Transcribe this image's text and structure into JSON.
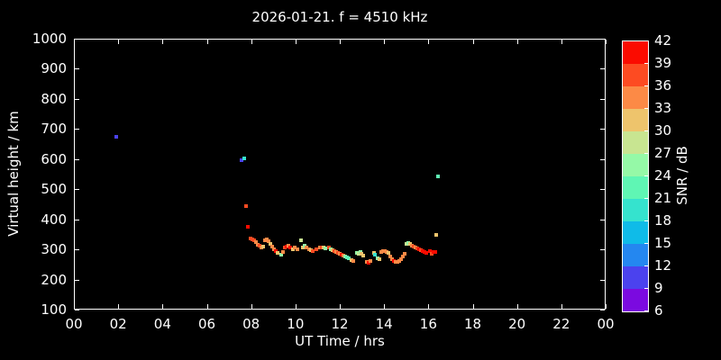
{
  "colors": {
    "background": "#000000",
    "foreground": "#ffffff",
    "axis": "#ffffff"
  },
  "chart_data": {
    "type": "scatter",
    "title": "2026-01-21. f = 4510 kHz",
    "xlabel": "UT Time / hrs",
    "ylabel": "Virtual height / km",
    "xlim": [
      0,
      24
    ],
    "ylim": [
      100,
      1000
    ],
    "grid": false,
    "marker": "square",
    "marker_size_px": 4,
    "x_tick_hours": [
      0,
      2,
      4,
      6,
      8,
      10,
      12,
      14,
      16,
      18,
      20,
      22,
      24
    ],
    "x_tick_labels": [
      "00",
      "02",
      "04",
      "06",
      "08",
      "10",
      "12",
      "14",
      "16",
      "18",
      "20",
      "22",
      "00"
    ],
    "y_tick_values": [
      100,
      200,
      300,
      400,
      500,
      600,
      700,
      800,
      900,
      1000
    ],
    "colorbar": {
      "label": "SNR / dB",
      "min": 6,
      "max": 42,
      "step": 3,
      "tick_values": [
        6,
        9,
        12,
        15,
        18,
        21,
        24,
        27,
        30,
        33,
        36,
        39,
        42
      ],
      "colors_low_to_high": [
        "#7B0AE0",
        "#4B42EE",
        "#2487F0",
        "#0FBBE8",
        "#35E3CE",
        "#5FF6B4",
        "#95F9A7",
        "#C8E591",
        "#EEC46C",
        "#FC8A46",
        "#FD4B22",
        "#FB0B00"
      ]
    },
    "points_format": [
      "ut_hours",
      "virtual_height_km",
      "snr_db"
    ],
    "points": [
      [
        1.9,
        675,
        10
      ],
      [
        7.57,
        595,
        10
      ],
      [
        7.69,
        601,
        19
      ],
      [
        7.77,
        445,
        37
      ],
      [
        7.85,
        374,
        40
      ],
      [
        7.97,
        337,
        37
      ],
      [
        8.06,
        334,
        37
      ],
      [
        8.14,
        331,
        37
      ],
      [
        8.22,
        325,
        34
      ],
      [
        8.3,
        316,
        34
      ],
      [
        8.38,
        313,
        37
      ],
      [
        8.46,
        307,
        34
      ],
      [
        8.54,
        310,
        31
      ],
      [
        8.63,
        331,
        34
      ],
      [
        8.71,
        334,
        34
      ],
      [
        8.79,
        328,
        34
      ],
      [
        8.87,
        319,
        31
      ],
      [
        8.95,
        310,
        34
      ],
      [
        9.03,
        301,
        34
      ],
      [
        9.11,
        295,
        40
      ],
      [
        9.2,
        289,
        31
      ],
      [
        9.36,
        283,
        25
      ],
      [
        9.44,
        292,
        34
      ],
      [
        9.52,
        307,
        37
      ],
      [
        9.6,
        310,
        40
      ],
      [
        9.68,
        313,
        34
      ],
      [
        9.76,
        307,
        40
      ],
      [
        9.88,
        301,
        31
      ],
      [
        9.97,
        307,
        34
      ],
      [
        10.09,
        301,
        34
      ],
      [
        10.25,
        331,
        28
      ],
      [
        10.33,
        307,
        31
      ],
      [
        10.41,
        313,
        25
      ],
      [
        10.49,
        307,
        34
      ],
      [
        10.62,
        301,
        34
      ],
      [
        10.7,
        298,
        31
      ],
      [
        10.78,
        295,
        37
      ],
      [
        10.94,
        301,
        37
      ],
      [
        11.1,
        307,
        34
      ],
      [
        11.19,
        307,
        37
      ],
      [
        11.27,
        307,
        31
      ],
      [
        11.35,
        304,
        25
      ],
      [
        11.51,
        307,
        37
      ],
      [
        11.59,
        301,
        25
      ],
      [
        11.67,
        298,
        31
      ],
      [
        11.76,
        295,
        37
      ],
      [
        11.84,
        292,
        34
      ],
      [
        11.92,
        289,
        37
      ],
      [
        12.0,
        286,
        34
      ],
      [
        12.08,
        283,
        40
      ],
      [
        12.16,
        280,
        34
      ],
      [
        12.24,
        277,
        25
      ],
      [
        12.33,
        274,
        22
      ],
      [
        12.41,
        271,
        22
      ],
      [
        12.53,
        265,
        31
      ],
      [
        12.61,
        262,
        34
      ],
      [
        12.77,
        289,
        25
      ],
      [
        12.86,
        286,
        28
      ],
      [
        12.94,
        292,
        25
      ],
      [
        12.98,
        286,
        31
      ],
      [
        13.06,
        280,
        31
      ],
      [
        13.22,
        259,
        34
      ],
      [
        13.3,
        256,
        40
      ],
      [
        13.38,
        262,
        34
      ],
      [
        13.55,
        289,
        31
      ],
      [
        13.59,
        283,
        19
      ],
      [
        13.71,
        271,
        25
      ],
      [
        13.79,
        268,
        31
      ],
      [
        13.87,
        292,
        34
      ],
      [
        13.95,
        295,
        34
      ],
      [
        14.03,
        295,
        34
      ],
      [
        14.11,
        292,
        34
      ],
      [
        14.2,
        289,
        31
      ],
      [
        14.28,
        277,
        34
      ],
      [
        14.36,
        268,
        34
      ],
      [
        14.44,
        262,
        40
      ],
      [
        14.52,
        259,
        34
      ],
      [
        14.6,
        259,
        34
      ],
      [
        14.68,
        262,
        34
      ],
      [
        14.76,
        268,
        34
      ],
      [
        14.85,
        277,
        34
      ],
      [
        14.93,
        286,
        34
      ],
      [
        15.01,
        319,
        28
      ],
      [
        15.09,
        322,
        25
      ],
      [
        15.17,
        319,
        31
      ],
      [
        15.25,
        313,
        34
      ],
      [
        15.34,
        310,
        37
      ],
      [
        15.42,
        307,
        34
      ],
      [
        15.5,
        304,
        37
      ],
      [
        15.58,
        301,
        40
      ],
      [
        15.66,
        298,
        37
      ],
      [
        15.74,
        295,
        40
      ],
      [
        15.83,
        292,
        40
      ],
      [
        15.91,
        289,
        40
      ],
      [
        16.07,
        295,
        40
      ],
      [
        16.15,
        286,
        37
      ],
      [
        16.23,
        292,
        40
      ],
      [
        16.31,
        292,
        40
      ],
      [
        16.35,
        349,
        31
      ],
      [
        16.43,
        544,
        22
      ]
    ]
  }
}
